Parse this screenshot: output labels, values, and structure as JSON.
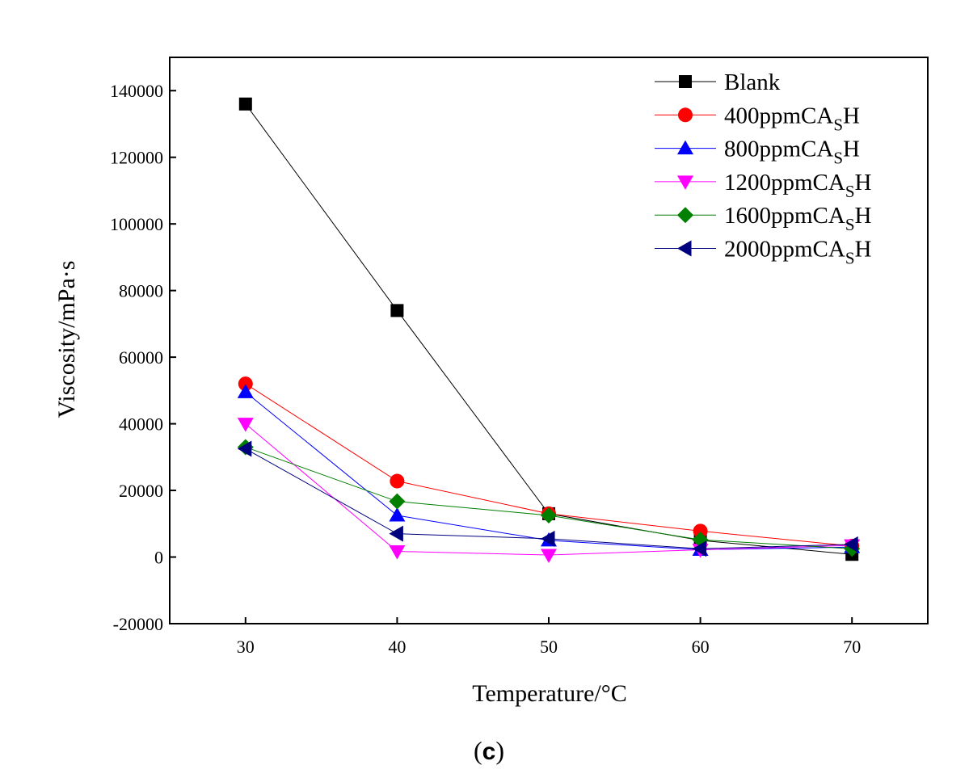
{
  "chart_data": {
    "type": "line",
    "title": "",
    "xlabel": "Temperature/°C",
    "ylabel": "Viscosity/mPa·s",
    "x": [
      30,
      40,
      50,
      60,
      70
    ],
    "xlim": [
      25,
      75
    ],
    "ylim": [
      -20000,
      150000
    ],
    "xticks": [
      30,
      40,
      50,
      60,
      70
    ],
    "yticks": [
      -20000,
      0,
      20000,
      40000,
      60000,
      80000,
      100000,
      120000,
      140000
    ],
    "grid": false,
    "legend_position": "top-right",
    "series": [
      {
        "name": "Blank",
        "label_main": "Blank",
        "label_sub": "",
        "label_end": "",
        "color": "#000000",
        "marker": "square",
        "values": [
          136000,
          74000,
          13000,
          5000,
          800
        ]
      },
      {
        "name": "400ppmCASH",
        "label_main": "400ppmCA",
        "label_sub": "S",
        "label_end": "H",
        "color": "#ff0000",
        "marker": "circle",
        "values": [
          52000,
          22800,
          13000,
          7800,
          3300
        ]
      },
      {
        "name": "800ppmCASH",
        "label_main": "800ppmCA",
        "label_sub": "S",
        "label_end": "H",
        "color": "#0000ff",
        "marker": "triangle-up",
        "values": [
          49500,
          12500,
          5000,
          2200,
          3000
        ]
      },
      {
        "name": "1200ppmCASH",
        "label_main": "1200ppmCA",
        "label_sub": "S",
        "label_end": "H",
        "color": "#ff00ff",
        "marker": "triangle-down",
        "values": [
          40000,
          1700,
          600,
          2200,
          3500
        ]
      },
      {
        "name": "1600ppmCASH",
        "label_main": "1600ppmCA",
        "label_sub": "S",
        "label_end": "H",
        "color": "#007f00",
        "marker": "diamond",
        "values": [
          33000,
          16700,
          12500,
          5200,
          2500
        ]
      },
      {
        "name": "2000ppmCASH",
        "label_main": "2000ppmCA",
        "label_sub": "S",
        "label_end": "H",
        "color": "#00007f",
        "marker": "triangle-left",
        "values": [
          32500,
          7000,
          5500,
          2500,
          3800
        ]
      }
    ]
  },
  "caption": {
    "open": "(",
    "letter": "c",
    "close": ")"
  }
}
